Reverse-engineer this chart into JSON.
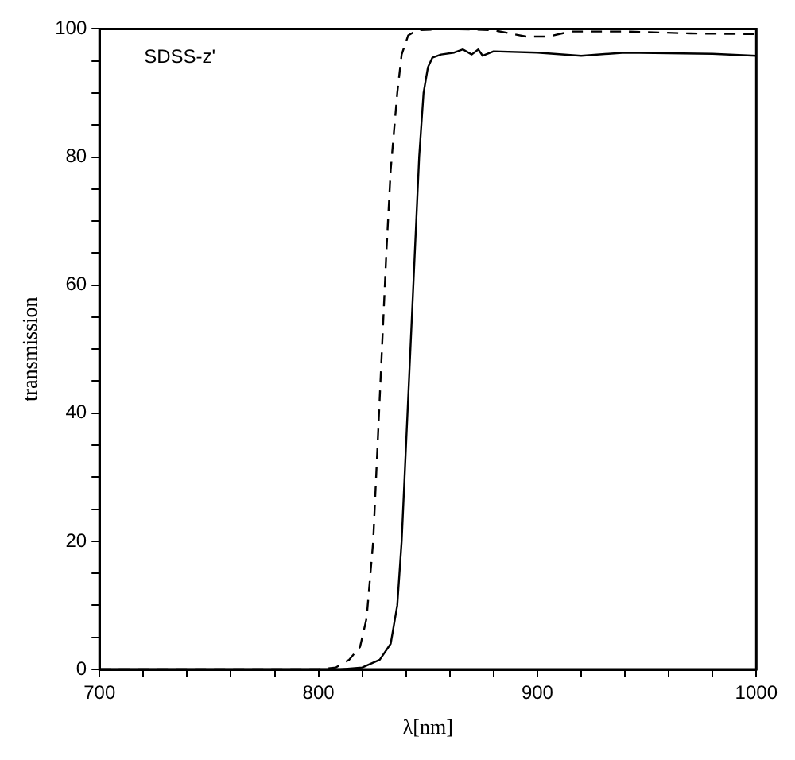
{
  "chart_data": {
    "type": "line",
    "xlabel": "λ[nm]",
    "ylabel": "transmission",
    "annotations": [
      "SDSS-z'"
    ],
    "xlim": [
      700,
      1000
    ],
    "ylim": [
      0,
      100
    ],
    "xticks": [
      700,
      {
        "value": 720,
        "label": null
      },
      {
        "value": 740,
        "label": null
      },
      {
        "value": 760,
        "label": null
      },
      {
        "value": 780,
        "label": null
      },
      800,
      {
        "value": 820,
        "label": null
      },
      {
        "value": 840,
        "label": null
      },
      {
        "value": 860,
        "label": null
      },
      {
        "value": 880,
        "label": null
      },
      900,
      {
        "value": 920,
        "label": null
      },
      {
        "value": 940,
        "label": null
      },
      {
        "value": 960,
        "label": null
      },
      {
        "value": 980,
        "label": null
      },
      1000
    ],
    "yticks": [
      0,
      {
        "value": 5,
        "label": null
      },
      {
        "value": 10,
        "label": null
      },
      {
        "value": 15,
        "label": null
      },
      20,
      {
        "value": 25,
        "label": null
      },
      {
        "value": 30,
        "label": null
      },
      {
        "value": 35,
        "label": null
      },
      40,
      {
        "value": 45,
        "label": null
      },
      {
        "value": 50,
        "label": null
      },
      {
        "value": 55,
        "label": null
      },
      60,
      {
        "value": 65,
        "label": null
      },
      {
        "value": 70,
        "label": null
      },
      {
        "value": 75,
        "label": null
      },
      80,
      {
        "value": 85,
        "label": null
      },
      {
        "value": 90,
        "label": null
      },
      {
        "value": 95,
        "label": null
      },
      100
    ],
    "grid": false,
    "legend": false,
    "marker": "none",
    "series": [
      {
        "color": "#000000",
        "line_style": "solid",
        "x": [
          700,
          810,
          820,
          828,
          833,
          836,
          838,
          840,
          842,
          844,
          846,
          848,
          850,
          852,
          856,
          862,
          866,
          870,
          873,
          875,
          880,
          900,
          920,
          940,
          960,
          980,
          1000
        ],
        "values": [
          0,
          0,
          0.3,
          1.5,
          4,
          10,
          20,
          35,
          50,
          65,
          80,
          90,
          94,
          95.5,
          96,
          96.3,
          96.8,
          96,
          96.8,
          95.8,
          96.5,
          96.3,
          95.8,
          96.3,
          96.2,
          96.1,
          95.8
        ]
      },
      {
        "color": "#000000",
        "line_style": "dashed",
        "x": [
          700,
          800,
          808,
          814,
          819,
          822,
          825,
          827,
          829,
          831,
          833,
          836,
          838,
          841,
          845,
          860,
          880,
          895,
          905,
          915,
          940,
          970,
          1000
        ],
        "values": [
          0,
          0,
          0.3,
          1.5,
          3.5,
          8,
          20,
          35,
          50,
          65,
          78,
          90,
          96,
          99,
          99.8,
          100,
          99.8,
          98.8,
          98.8,
          99.6,
          99.6,
          99.3,
          99.2
        ]
      }
    ]
  }
}
